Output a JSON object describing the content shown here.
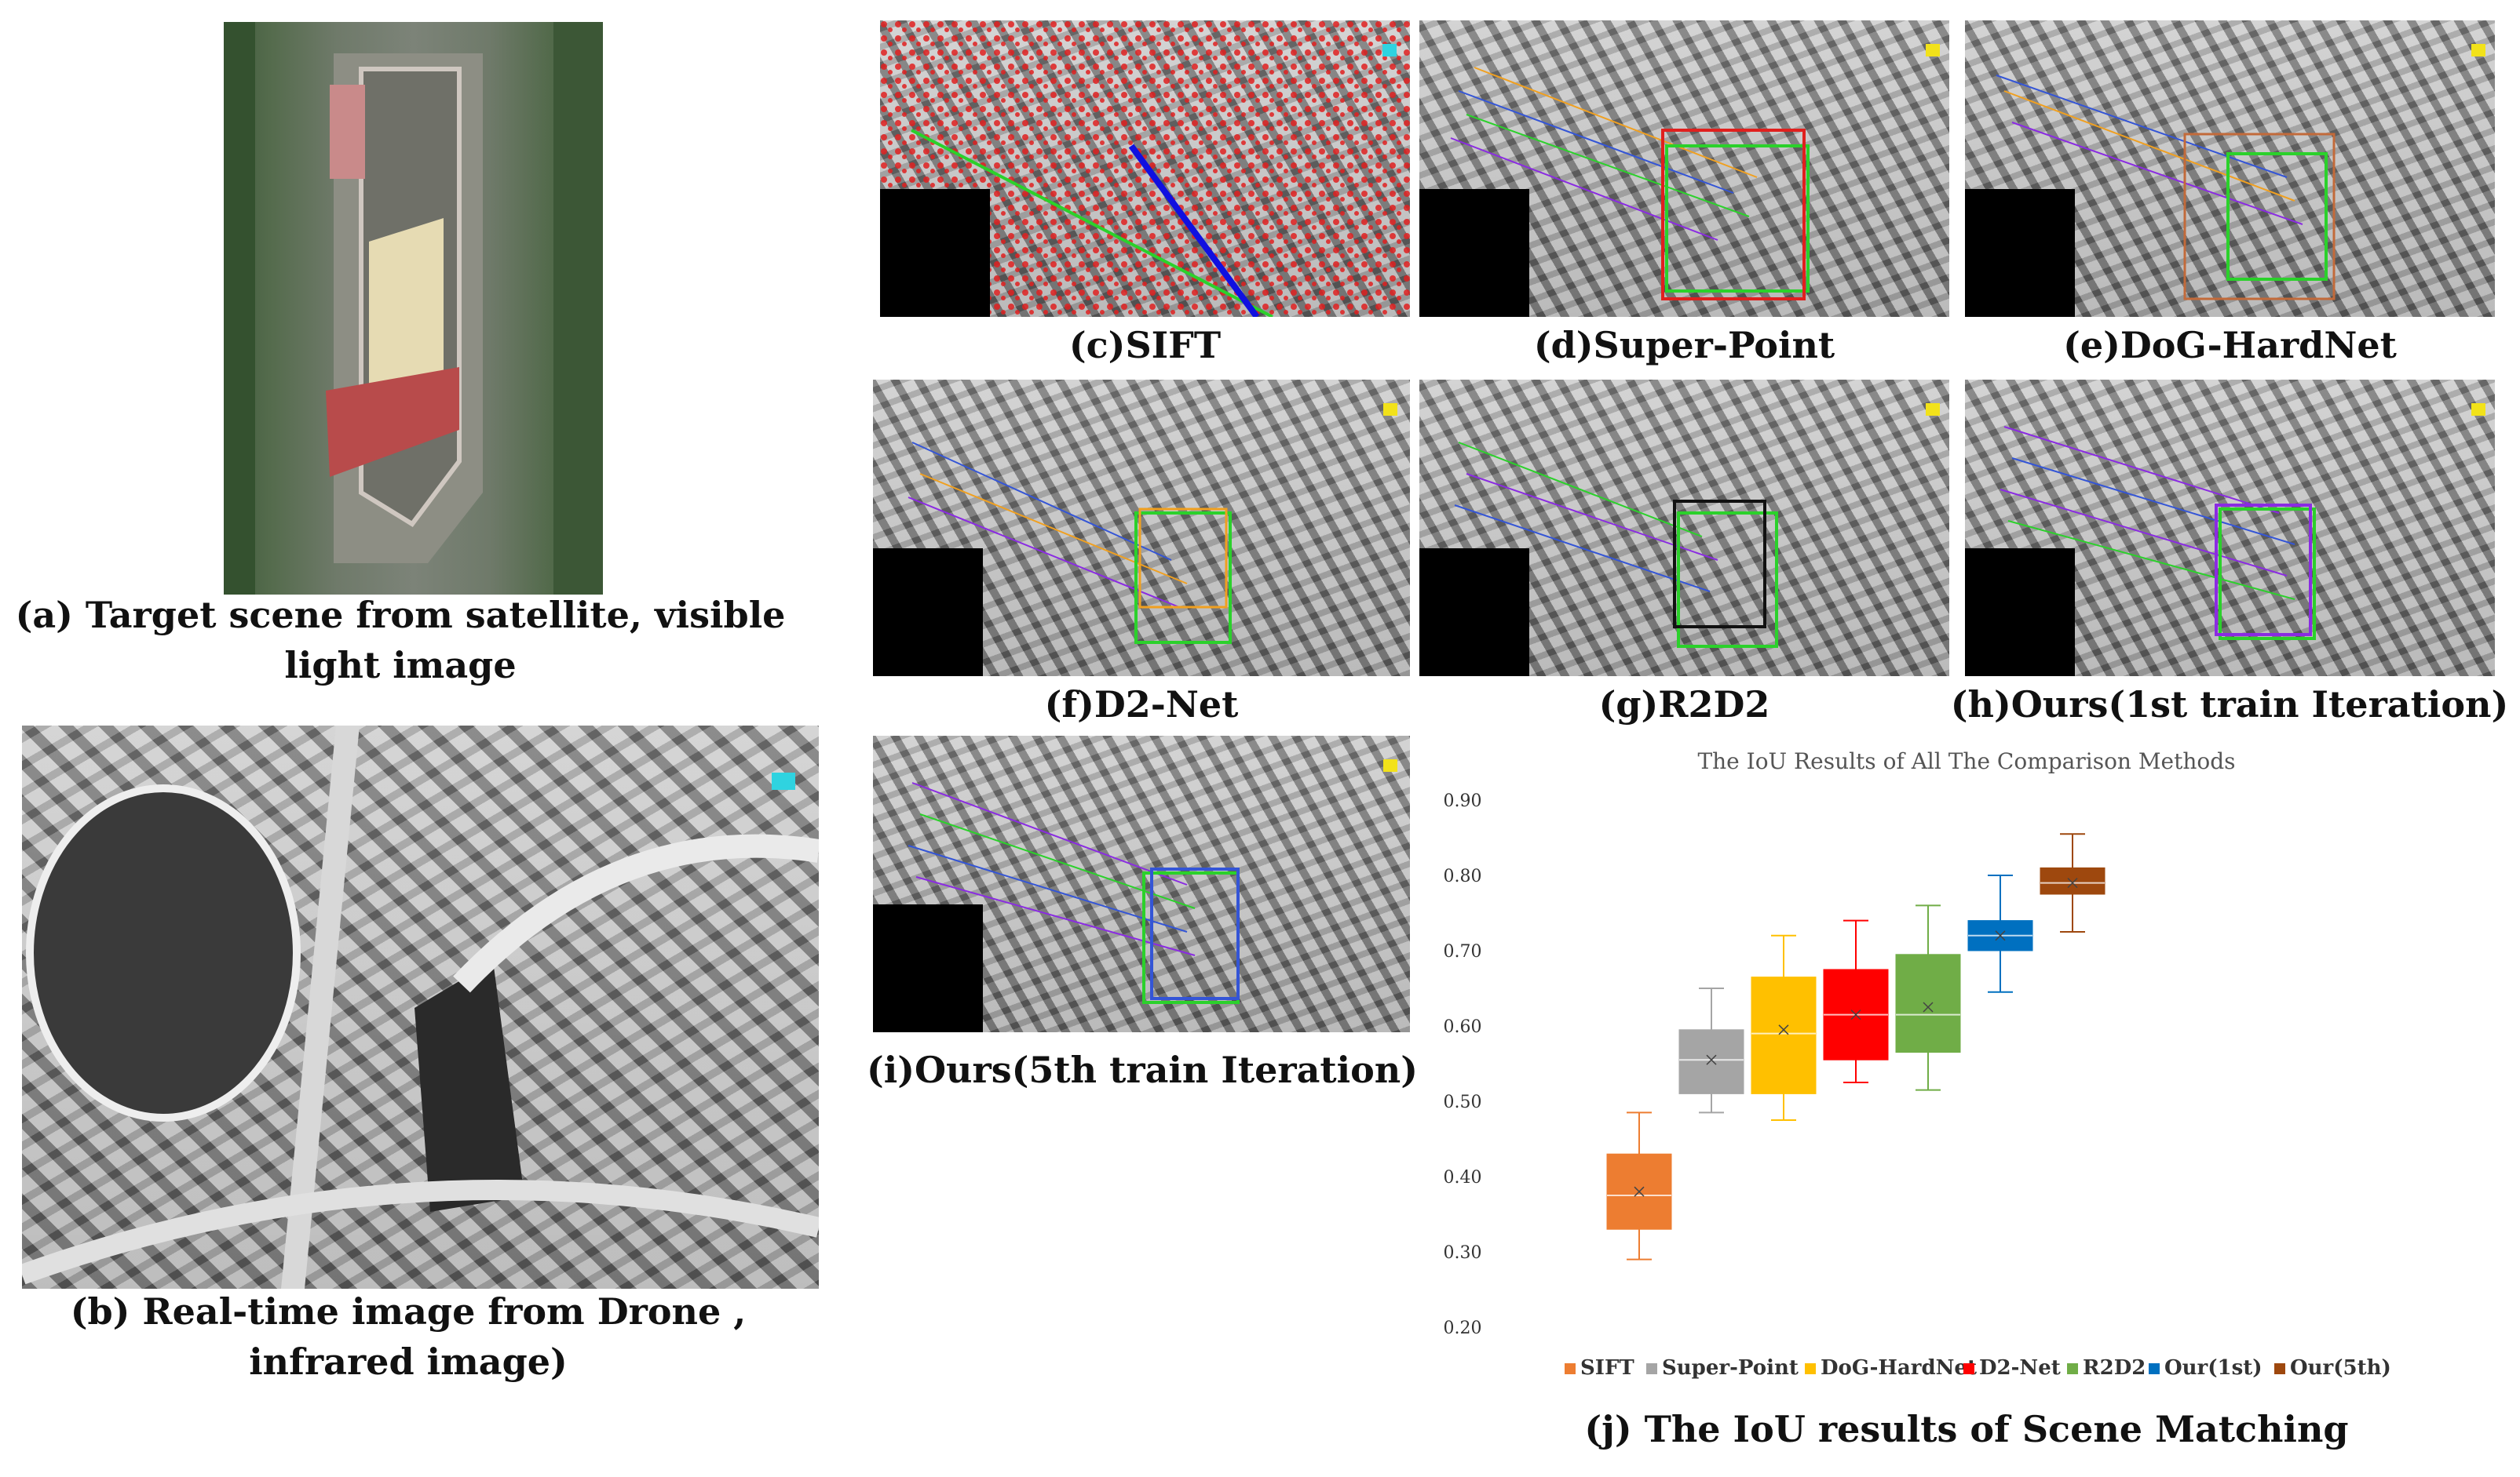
{
  "captions": {
    "a": "(a) Target scene from satellite, visible light image",
    "a_line1": "(a) Target scene from satellite, visible",
    "a_line2": "light image",
    "b_line1": "(b) Real-time image from Drone ,",
    "b_line2": "infrared image)",
    "c": "(c)SIFT",
    "d": "(d)Super-Point",
    "e": "(e)DoG-HardNet",
    "f": "(f)D2-Net",
    "g": "(g)R2D2",
    "h": "(h)Ours(1st train Iteration)",
    "i": "(i)Ours(5th train Iteration)",
    "j": "(j) The IoU results of Scene Matching"
  },
  "colors": {
    "SIFT": "#ed7d31",
    "Super-Point": "#a5a5a5",
    "DoG-HardNet": "#ffc000",
    "D2-Net": "#ff0000",
    "R2D2": "#70ad47",
    "Our(1st)": "#0070c0",
    "Our(5th)": "#9e480e",
    "sift_points": "#e02020",
    "match_box_green": "#2bd12b",
    "match_box_red": "#e0201e",
    "match_box_purple": "#8a2be2",
    "match_box_blue": "#3455d6",
    "match_box_orange": "#f0a020",
    "match_box_black": "#111111"
  },
  "chart_data": {
    "type": "box",
    "title": "The IoU Results of All The Comparison Methods",
    "ylim": [
      0.2,
      0.9
    ],
    "yticks": [
      "0.20",
      "0.30",
      "0.40",
      "0.50",
      "0.60",
      "0.70",
      "0.80",
      "0.90"
    ],
    "legend_position": "bottom",
    "grid": false,
    "series": [
      {
        "name": "SIFT",
        "min": 0.29,
        "q1": 0.33,
        "median": 0.375,
        "mean": 0.38,
        "q3": 0.43,
        "max": 0.485
      },
      {
        "name": "Super-Point",
        "min": 0.485,
        "q1": 0.51,
        "median": 0.555,
        "mean": 0.555,
        "q3": 0.595,
        "max": 0.65
      },
      {
        "name": "DoG-HardNet",
        "min": 0.475,
        "q1": 0.51,
        "median": 0.59,
        "mean": 0.595,
        "q3": 0.665,
        "max": 0.72
      },
      {
        "name": "D2-Net",
        "min": 0.525,
        "q1": 0.555,
        "median": 0.615,
        "mean": 0.615,
        "q3": 0.675,
        "max": 0.74
      },
      {
        "name": "R2D2",
        "min": 0.515,
        "q1": 0.565,
        "median": 0.615,
        "mean": 0.625,
        "q3": 0.695,
        "max": 0.76
      },
      {
        "name": "Our(1st)",
        "min": 0.645,
        "q1": 0.7,
        "median": 0.72,
        "mean": 0.72,
        "q3": 0.74,
        "max": 0.8
      },
      {
        "name": "Our(5th)",
        "min": 0.725,
        "q1": 0.775,
        "median": 0.79,
        "mean": 0.79,
        "q3": 0.81,
        "max": 0.855
      }
    ]
  }
}
